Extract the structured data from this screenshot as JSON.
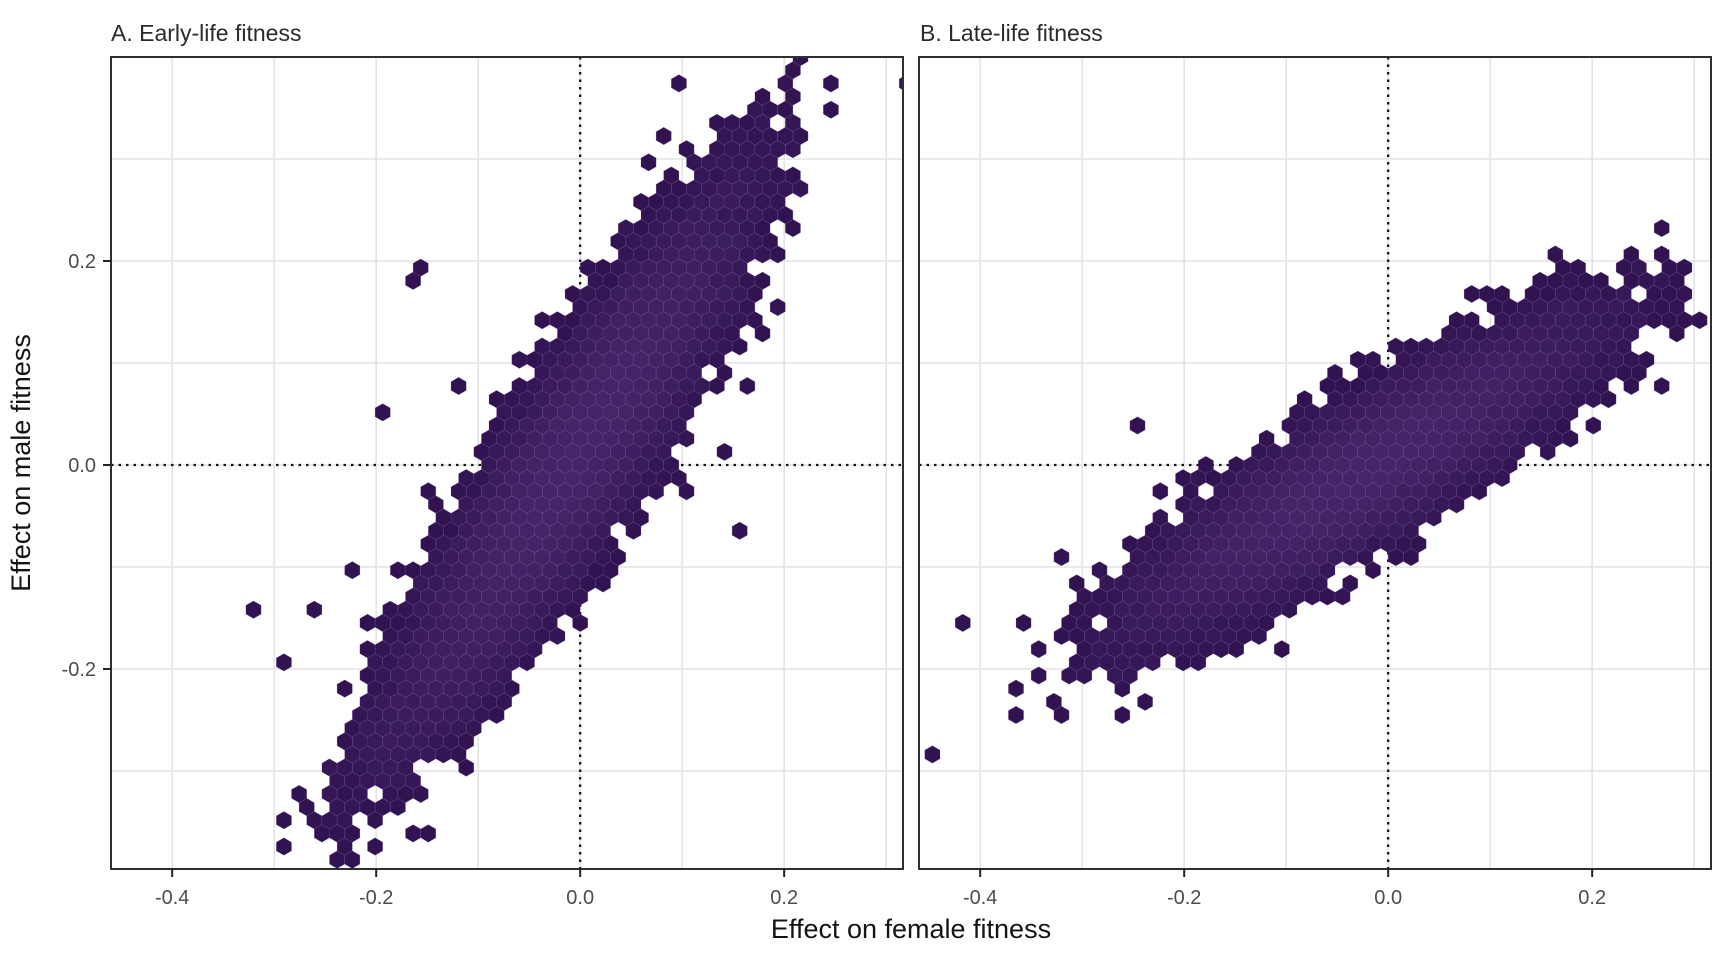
{
  "figure": {
    "x_axis_title": "Effect on female fitness",
    "y_axis_title": "Effect on male fitness",
    "background": "#ffffff",
    "panel_border_color": "#2f2f2f",
    "grid_color": "#e4e4e4",
    "tick_color": "#222222",
    "tick_label_color": "#4d4d4d",
    "panel_title_color": "#2a2a2a",
    "axis_title_color": "#141414",
    "reference_line_color": "#161616",
    "hex_color_low": "#2e114e",
    "hex_color_high": "#49276d",
    "hex_outline_color": "#7a5ba0",
    "contour_rings": [
      {
        "scale": 1.0,
        "color": "#cdc8e6",
        "width": 2.2
      },
      {
        "scale": 0.93,
        "color": "#beb8dd",
        "width": 2.0
      },
      {
        "scale": 0.86,
        "color": "#a8a1d2",
        "width": 2.0
      },
      {
        "scale": 0.78,
        "color": "#423e80",
        "width": 2.6
      },
      {
        "scale": 0.69,
        "color": "#edebf7",
        "width": 3.6
      },
      {
        "scale": 0.6,
        "color": "#8d86c1",
        "width": 1.8
      },
      {
        "scale": 0.51,
        "color": "#2e968c",
        "width": 2.2
      },
      {
        "scale": 0.42,
        "color": "#38b977",
        "width": 2.2
      },
      {
        "scale": 0.34,
        "color": "#b9e6c0",
        "width": 2.4
      }
    ],
    "contour_beads": [
      {
        "f": -0.62,
        "s": 0.45,
        "color": "#2b8d8a"
      },
      {
        "f": -0.47,
        "s": 0.55,
        "color": "#36b677"
      },
      {
        "f": -0.33,
        "s": 0.5,
        "color": "#2b8d8a"
      },
      {
        "f": -0.18,
        "s": 0.65,
        "color": "#36b677"
      },
      {
        "f": 0.18,
        "s": 0.65,
        "color": "#36b677"
      },
      {
        "f": 0.33,
        "s": 0.5,
        "color": "#2b8d8a"
      },
      {
        "f": 0.47,
        "s": 0.55,
        "color": "#36b677"
      },
      {
        "f": 0.62,
        "s": 0.45,
        "color": "#2b8d8a"
      }
    ]
  },
  "chart_data": [
    {
      "type": "hexbin-density",
      "panel_label": "A. Early-life fitness",
      "x_label": "Effect on female fitness",
      "y_label": "Effect on male fitness",
      "xlim": [
        -0.46,
        0.3165
      ],
      "ylim": [
        -0.3961,
        0.4
      ],
      "grid_step": 0.1,
      "x_ticks": [
        {
          "value": -0.4,
          "label": "-0.4"
        },
        {
          "value": -0.2,
          "label": "-0.2"
        },
        {
          "value": 0.0,
          "label": "0.0"
        },
        {
          "value": 0.2,
          "label": "0.2"
        }
      ],
      "y_ticks": [
        {
          "value": 0.2,
          "label": "0.2"
        },
        {
          "value": 0.0,
          "label": "0.0"
        },
        {
          "value": -0.2,
          "label": "-0.2"
        }
      ],
      "reference_lines": [
        {
          "axis": "x",
          "value": 0,
          "style": "dotted"
        },
        {
          "axis": "y",
          "value": 0,
          "style": "dotted"
        }
      ],
      "hexbin": {
        "n_points": 30000,
        "mean": [
          -0.005,
          0.008
        ],
        "sd": [
          0.062,
          0.096
        ],
        "rho": 0.9,
        "spread": {
          "weight": 0.06,
          "scale": 1.35
        },
        "tail": {
          "weight": 0.035,
          "mean": [
            -0.13,
            -0.2
          ],
          "sd": [
            0.05,
            0.06
          ],
          "rho": 0.85
        },
        "hex_radius": 0.0086
      },
      "outliers": [
        [
          0.098,
          0.369
        ],
        [
          0.063,
          0.296
        ],
        [
          0.085,
          0.247
        ],
        [
          0.04,
          0.235
        ],
        [
          0.147,
          0.165
        ],
        [
          0.196,
          0.161
        ],
        [
          0.206,
          0.23
        ],
        [
          -0.157,
          0.196
        ],
        [
          -0.157,
          0.177
        ],
        [
          -0.118,
          0.08
        ],
        [
          -0.19,
          0.05
        ],
        [
          0.147,
          0.013
        ],
        [
          0.157,
          -0.059
        ],
        [
          0.108,
          -0.02
        ],
        [
          -0.216,
          -0.098
        ],
        [
          -0.324,
          -0.139
        ],
        [
          -0.255,
          -0.147
        ],
        [
          -0.294,
          -0.196
        ],
        [
          -0.235,
          -0.225
        ],
        [
          -0.206,
          -0.275
        ],
        [
          -0.186,
          -0.304
        ],
        [
          -0.216,
          -0.333
        ],
        [
          -0.226,
          -0.343
        ],
        [
          -0.108,
          -0.255
        ],
        [
          -0.147,
          -0.284
        ],
        [
          -0.167,
          -0.255
        ],
        [
          -0.196,
          -0.186
        ],
        [
          -0.176,
          -0.216
        ]
      ],
      "contour": {
        "center": [
          -0.003,
          0.012
        ],
        "angle_deg": 61.3,
        "semi_major": 0.0865,
        "semi_minor": 0.0185,
        "core": {
          "halo_color": "#e9f7d9",
          "halo_scale": [
            0.16,
            0.38
          ],
          "fill": "#b5e455",
          "scale": [
            0.1,
            0.24
          ]
        }
      }
    },
    {
      "type": "hexbin-density",
      "panel_label": "B. Late-life fitness",
      "x_label": "Effect on female fitness",
      "y_label": "Effect on male fitness",
      "xlim": [
        -0.46,
        0.3165
      ],
      "ylim": [
        -0.3961,
        0.4
      ],
      "grid_step": 0.1,
      "x_ticks": [
        {
          "value": -0.4,
          "label": "-0.4"
        },
        {
          "value": -0.2,
          "label": "-0.2"
        },
        {
          "value": 0.0,
          "label": "0.0"
        },
        {
          "value": 0.2,
          "label": "0.2"
        }
      ],
      "y_ticks": [],
      "reference_lines": [
        {
          "axis": "x",
          "value": 0,
          "style": "dotted"
        },
        {
          "axis": "y",
          "value": 0,
          "style": "dotted"
        }
      ],
      "hexbin": {
        "n_points": 24000,
        "mean": [
          -0.02,
          -0.005
        ],
        "sd": [
          0.085,
          0.058
        ],
        "rho": 0.88,
        "spread": {
          "weight": 0.06,
          "scale": 1.35
        },
        "tail": {
          "weight": 0.04,
          "mean": [
            -0.15,
            -0.09
          ],
          "sd": [
            0.055,
            0.04
          ],
          "rho": 0.8
        },
        "hex_radius": 0.0086
      },
      "outliers": [
        [
          -0.419,
          -0.152
        ],
        [
          -0.327,
          -0.09
        ],
        [
          -0.296,
          -0.184
        ],
        [
          -0.255,
          -0.167
        ],
        [
          -0.235,
          -0.088
        ],
        [
          -0.206,
          -0.113
        ],
        [
          -0.24,
          0.035
        ],
        [
          -0.28,
          -0.12
        ],
        [
          -0.26,
          -0.2
        ],
        [
          -0.23,
          -0.03
        ],
        [
          0.205,
          0.183
        ],
        [
          0.22,
          0.16
        ],
        [
          0.233,
          0.134
        ],
        [
          0.282,
          0.145
        ],
        [
          0.3,
          0.14
        ],
        [
          0.248,
          0.109
        ],
        [
          0.24,
          0.072
        ],
        [
          0.27,
          0.078
        ]
      ],
      "contour": {
        "center": [
          0.001,
          0.0
        ],
        "angle_deg": 36.8,
        "semi_major": 0.0825,
        "semi_minor": 0.019,
        "core": {
          "halo_color": "#f6f9cb",
          "halo_scale": [
            0.2,
            0.46
          ],
          "fill": "#fde725",
          "scale": [
            0.13,
            0.32
          ]
        }
      }
    }
  ]
}
